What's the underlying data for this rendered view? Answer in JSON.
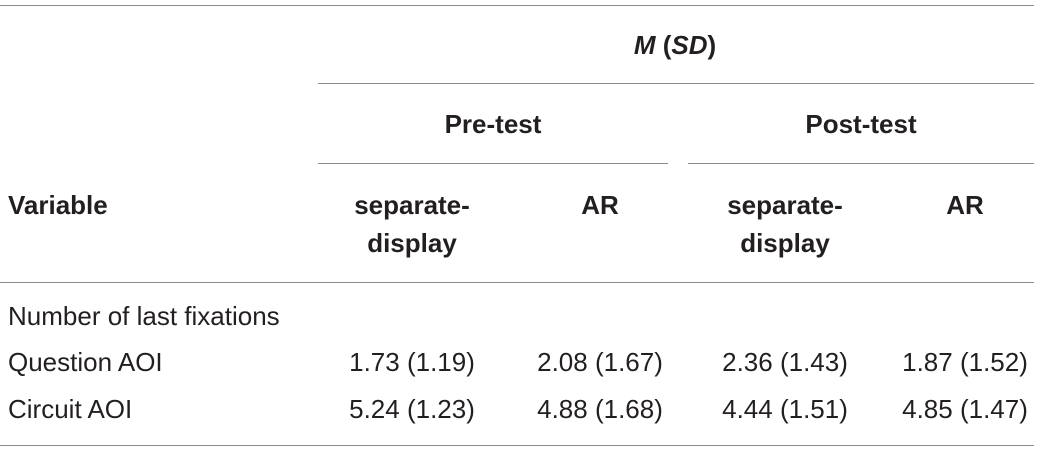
{
  "header": {
    "group_title_parts": [
      "M",
      " (",
      "SD",
      ")"
    ],
    "groups": [
      "Pre-test",
      "Post-test"
    ],
    "variable_label": "Variable",
    "columns": [
      [
        "separate-",
        "display"
      ],
      [
        "AR"
      ],
      [
        "separate-",
        "display"
      ],
      [
        "AR"
      ]
    ]
  },
  "table": {
    "section": "Number of last fixations",
    "rows": [
      [
        "Question AOI",
        "1.73 (1.19)",
        "2.08 (1.67)",
        "2.36 (1.43)",
        "1.87 (1.52)"
      ],
      [
        "Circuit AOI",
        "5.24 (1.23)",
        "4.88 (1.68)",
        "4.44 (1.51)",
        "4.85 (1.47)"
      ]
    ]
  }
}
